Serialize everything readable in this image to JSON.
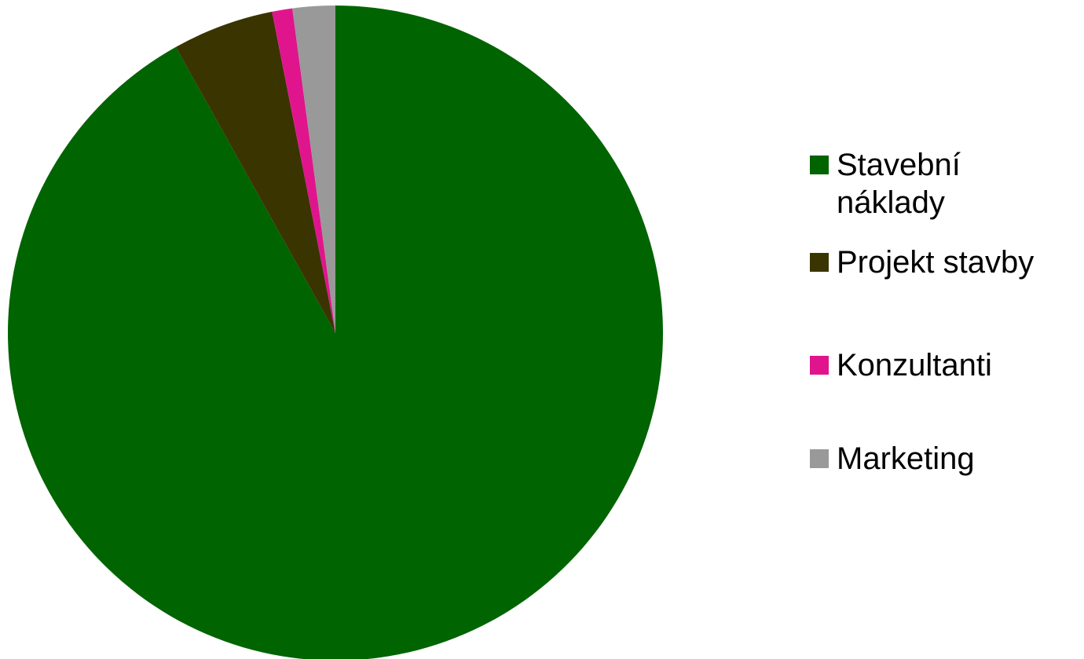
{
  "chart_data": {
    "type": "pie",
    "categories": [
      "Stavební náklady",
      "Projekt stavby",
      "Konzultanti",
      "Marketing"
    ],
    "values": [
      91.9,
      5.0,
      1.0,
      2.1
    ],
    "colors": [
      "#006400",
      "#3a3400",
      "#e0158d",
      "#999999"
    ],
    "start_angle_deg": 0,
    "direction": "clockwise",
    "legend_position": "right"
  }
}
